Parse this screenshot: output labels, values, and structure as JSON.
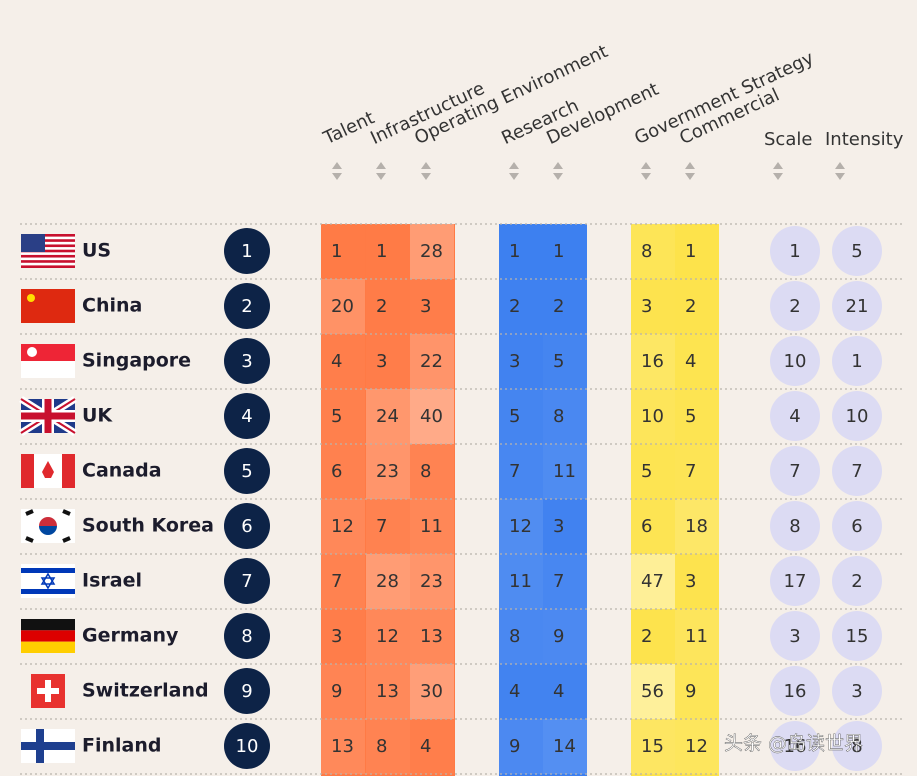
{
  "header": {
    "columns": [
      "Talent",
      "Infrastructure",
      "Operating Environment",
      "Research",
      "Development",
      "Government Strategy",
      "Commercial",
      "Scale",
      "Intensity"
    ]
  },
  "rows": [
    {
      "country": "US",
      "rank": 1,
      "values": [
        1,
        1,
        28,
        1,
        1,
        8,
        1,
        1,
        5
      ]
    },
    {
      "country": "China",
      "rank": 2,
      "values": [
        20,
        2,
        3,
        2,
        2,
        3,
        2,
        2,
        21
      ]
    },
    {
      "country": "Singapore",
      "rank": 3,
      "values": [
        4,
        3,
        22,
        3,
        5,
        16,
        4,
        10,
        1
      ]
    },
    {
      "country": "UK",
      "rank": 4,
      "values": [
        5,
        24,
        40,
        5,
        8,
        10,
        5,
        4,
        10
      ]
    },
    {
      "country": "Canada",
      "rank": 5,
      "values": [
        6,
        23,
        8,
        7,
        11,
        5,
        7,
        7,
        7
      ]
    },
    {
      "country": "South Korea",
      "rank": 6,
      "values": [
        12,
        7,
        11,
        12,
        3,
        6,
        18,
        8,
        6
      ]
    },
    {
      "country": "Israel",
      "rank": 7,
      "values": [
        7,
        28,
        23,
        11,
        7,
        47,
        3,
        17,
        2
      ]
    },
    {
      "country": "Germany",
      "rank": 8,
      "values": [
        3,
        12,
        13,
        8,
        9,
        2,
        11,
        3,
        15
      ]
    },
    {
      "country": "Switzerland",
      "rank": 9,
      "values": [
        9,
        13,
        30,
        4,
        4,
        56,
        9,
        16,
        3
      ]
    },
    {
      "country": "Finland",
      "rank": 10,
      "values": [
        13,
        8,
        4,
        9,
        14,
        15,
        12,
        16,
        8
      ]
    }
  ],
  "watermark": "头条 @岛读世界"
}
